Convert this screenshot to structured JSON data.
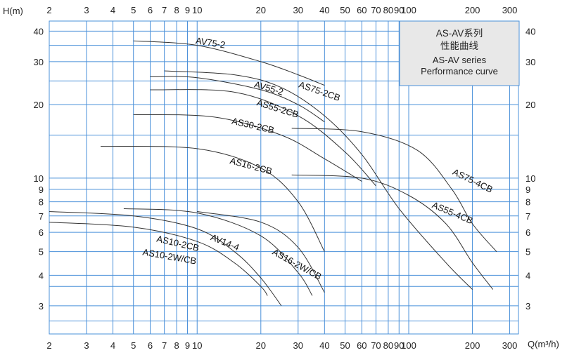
{
  "chart_data": {
    "type": "line",
    "title": "AS-AV系列",
    "subtitle": "性能曲线",
    "title_en": "AS-AV series",
    "subtitle_en": "Performance curve",
    "xlabel": "Q(m³/h)",
    "ylabel": "H(m)",
    "x_scale": "log",
    "y_scale": "log",
    "xlim": [
      2,
      330
    ],
    "ylim": [
      2.3,
      44
    ],
    "x_ticks_bottom": [
      {
        "v": 2,
        "label": "2"
      },
      {
        "v": 3,
        "label": "3"
      },
      {
        "v": 4,
        "label": "4"
      },
      {
        "v": 5,
        "label": "5"
      },
      {
        "v": 6,
        "label": "6"
      },
      {
        "v": 7,
        "label": "7"
      },
      {
        "v": 8,
        "label": "8"
      },
      {
        "v": 9,
        "label": "9"
      },
      {
        "v": 10,
        "label": "10"
      },
      {
        "v": 20,
        "label": "20"
      },
      {
        "v": 30,
        "label": "30"
      },
      {
        "v": 40,
        "label": "40"
      },
      {
        "v": 50,
        "label": "50"
      },
      {
        "v": 60,
        "label": "60"
      },
      {
        "v": 70,
        "label": "70"
      },
      {
        "v": 80,
        "label": "80"
      },
      {
        "v": 90,
        "label": "90"
      },
      {
        "v": 100,
        "label": "100"
      },
      {
        "v": 200,
        "label": "200"
      },
      {
        "v": 300,
        "label": "300"
      }
    ],
    "x_ticks_top": [
      {
        "v": 2,
        "label": "2"
      },
      {
        "v": 3,
        "label": "3"
      },
      {
        "v": 4,
        "label": "4"
      },
      {
        "v": 5,
        "label": "5"
      },
      {
        "v": 6,
        "label": "6"
      },
      {
        "v": 7,
        "label": "7"
      },
      {
        "v": 8,
        "label": "8"
      },
      {
        "v": 9,
        "label": "9"
      },
      {
        "v": 10,
        "label": "10"
      },
      {
        "v": 20,
        "label": "20"
      },
      {
        "v": 30,
        "label": "30"
      },
      {
        "v": 40,
        "label": "40"
      },
      {
        "v": 50,
        "label": "50"
      },
      {
        "v": 60,
        "label": "60"
      },
      {
        "v": 70,
        "label": "70"
      },
      {
        "v": 80,
        "label": "80"
      },
      {
        "v": 90,
        "label": "90"
      },
      {
        "v": 100,
        "label": "100"
      },
      {
        "v": 200,
        "label": "200"
      },
      {
        "v": 300,
        "label": "300"
      }
    ],
    "y_ticks": [
      {
        "v": 3,
        "label": "3"
      },
      {
        "v": 4,
        "label": "4"
      },
      {
        "v": 5,
        "label": "5"
      },
      {
        "v": 6,
        "label": "6"
      },
      {
        "v": 7,
        "label": "7"
      },
      {
        "v": 8,
        "label": "8"
      },
      {
        "v": 9,
        "label": "9"
      },
      {
        "v": 10,
        "label": "10"
      },
      {
        "v": 20,
        "label": "20"
      },
      {
        "v": 30,
        "label": "30"
      },
      {
        "v": 40,
        "label": "40"
      }
    ],
    "grid": true,
    "legend": "top-right",
    "colors": {
      "grid": "#4a90d9",
      "curve": "#333333",
      "legend_bg": "#e8e8e8",
      "text": "#222222"
    },
    "series": [
      {
        "name": "AV75-2",
        "points": [
          [
            5,
            36.5
          ],
          [
            10,
            35
          ],
          [
            20,
            30
          ],
          [
            30,
            26.5
          ],
          [
            40,
            24
          ]
        ],
        "label_at": [
          9.8,
          35.6
        ],
        "label_angle": 9
      },
      {
        "name": "AS75-2CB",
        "points": [
          [
            7,
            27.5
          ],
          [
            15,
            26.5
          ],
          [
            25,
            23.5
          ],
          [
            40,
            18
          ],
          [
            60,
            12.5
          ],
          [
            90,
            7.5
          ],
          [
            150,
            4.5
          ],
          [
            200,
            3.5
          ]
        ],
        "label_at": [
          30,
          23.6
        ],
        "label_angle": 19
      },
      {
        "name": "AV55-2",
        "points": [
          [
            6,
            26
          ],
          [
            10,
            25.8
          ],
          [
            20,
            23
          ],
          [
            30,
            20
          ],
          [
            40,
            17
          ]
        ],
        "label_at": [
          18.5,
          23.6
        ],
        "label_angle": 16
      },
      {
        "name": "AS55-2CB",
        "points": [
          [
            6,
            23
          ],
          [
            15,
            22.5
          ],
          [
            30,
            18
          ],
          [
            50,
            12.8
          ],
          [
            70,
            9.3
          ]
        ],
        "label_at": [
          19,
          19.9
        ],
        "label_angle": 17
      },
      {
        "name": "AS30-2CB",
        "points": [
          [
            5,
            18.2
          ],
          [
            12,
            17.8
          ],
          [
            25,
            15
          ],
          [
            40,
            12
          ],
          [
            60,
            9.7
          ]
        ],
        "label_at": [
          14.5,
          16.7
        ],
        "label_angle": 13
      },
      {
        "name": "AS75-4CB",
        "points": [
          [
            28,
            16
          ],
          [
            60,
            15.5
          ],
          [
            110,
            13
          ],
          [
            160,
            9
          ],
          [
            200,
            6.5
          ],
          [
            260,
            5
          ]
        ],
        "label_at": [
          160,
          10.4
        ],
        "label_angle": 26
      },
      {
        "name": "AS16-2CB",
        "points": [
          [
            3.5,
            13.5
          ],
          [
            10,
            13.2
          ],
          [
            20,
            11
          ],
          [
            30,
            8
          ],
          [
            40,
            5
          ]
        ],
        "label_at": [
          14.2,
          11.5
        ],
        "label_angle": 15
      },
      {
        "name": "AS55-4CB",
        "points": [
          [
            28,
            10.3
          ],
          [
            60,
            10
          ],
          [
            100,
            8.5
          ],
          [
            150,
            6.5
          ],
          [
            200,
            4.5
          ],
          [
            250,
            3.5
          ]
        ],
        "label_at": [
          128,
          7.6
        ],
        "label_angle": 23
      },
      {
        "name": "AV14-4",
        "points": [
          [
            4.5,
            7.5
          ],
          [
            10,
            7.2
          ],
          [
            20,
            5.8
          ],
          [
            30,
            4.1
          ],
          [
            35,
            3.3
          ]
        ],
        "label_at": [
          11.5,
          5.6
        ],
        "label_angle": 22
      },
      {
        "name": "AS16-2W/CB",
        "points": [
          [
            10,
            7.3
          ],
          [
            20,
            6.6
          ],
          [
            30,
            5.2
          ],
          [
            40,
            3.4
          ]
        ],
        "label_at": [
          22.5,
          4.9
        ],
        "label_angle": 29
      },
      {
        "name": "AS10-2CB",
        "points": [
          [
            2,
            7.3
          ],
          [
            5,
            7
          ],
          [
            10,
            6.2
          ],
          [
            15,
            5
          ],
          [
            20,
            3.9
          ],
          [
            25,
            3
          ]
        ],
        "label_at": [
          6.4,
          5.5
        ],
        "label_angle": 13
      },
      {
        "name": "AS10-2W/CB",
        "points": [
          [
            2,
            6.6
          ],
          [
            5,
            6.3
          ],
          [
            10,
            5.5
          ],
          [
            15,
            4.5
          ],
          [
            20,
            3.6
          ],
          [
            21.5,
            3.3
          ]
        ],
        "label_at": [
          5.5,
          4.85
        ],
        "label_angle": 10
      }
    ]
  }
}
